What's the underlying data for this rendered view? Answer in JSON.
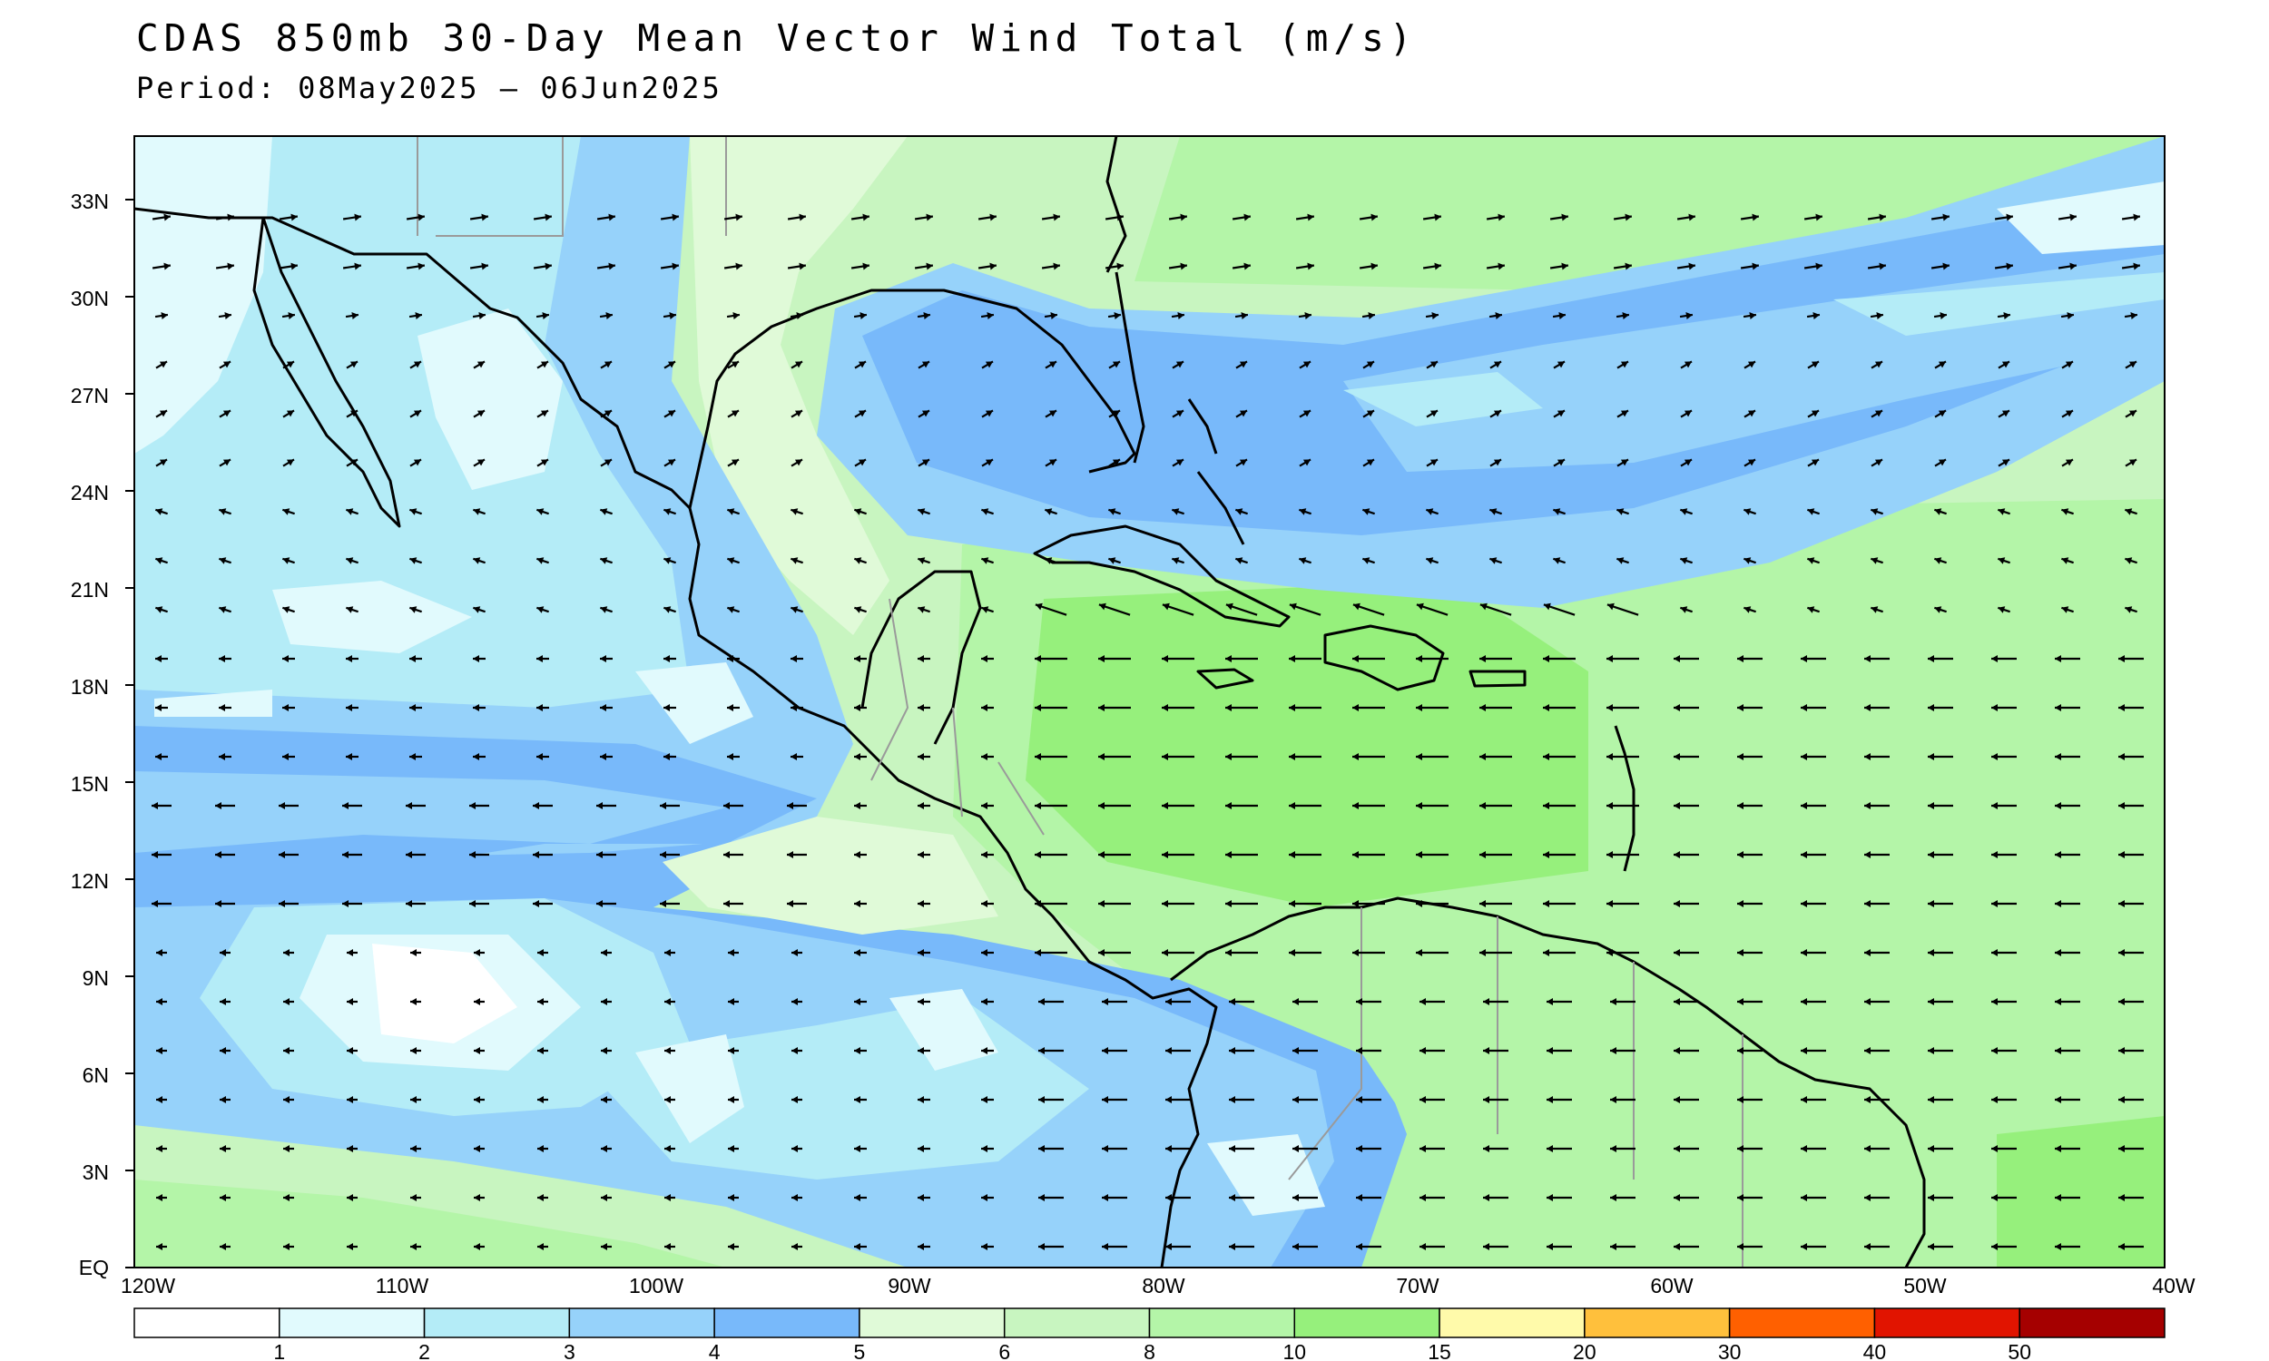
{
  "title": "CDAS 850mb 30-Day Mean Vector Wind Total (m/s)",
  "subtitle": "Period: 08May2025 – 06Jun2025",
  "map": {
    "lon_range": [
      -120,
      -40
    ],
    "lat_range": [
      0,
      35
    ],
    "lat_ticks": [
      "EQ",
      "3N",
      "6N",
      "9N",
      "12N",
      "15N",
      "18N",
      "21N",
      "24N",
      "27N",
      "30N",
      "33N"
    ],
    "lon_ticks": [
      "120W",
      "110W",
      "100W",
      "90W",
      "80W",
      "70W",
      "60W",
      "50W",
      "40W"
    ]
  },
  "colorbar": {
    "colors": [
      "#ffffff",
      "#e1fafd",
      "#b4ecf7",
      "#96d2fa",
      "#78b9fa",
      "#e0fad8",
      "#c8f5c0",
      "#b4f5a8",
      "#96f07c",
      "#fffaaa",
      "#ffc03c",
      "#ff6000",
      "#e11400",
      "#a50000"
    ],
    "labels": [
      "1",
      "2",
      "3",
      "4",
      "5",
      "6",
      "8",
      "10",
      "15",
      "20",
      "30",
      "40",
      "50"
    ]
  },
  "colors": {
    "land_outline": "#000000",
    "borders": "#9a9a9a",
    "arrows": "#000000"
  }
}
